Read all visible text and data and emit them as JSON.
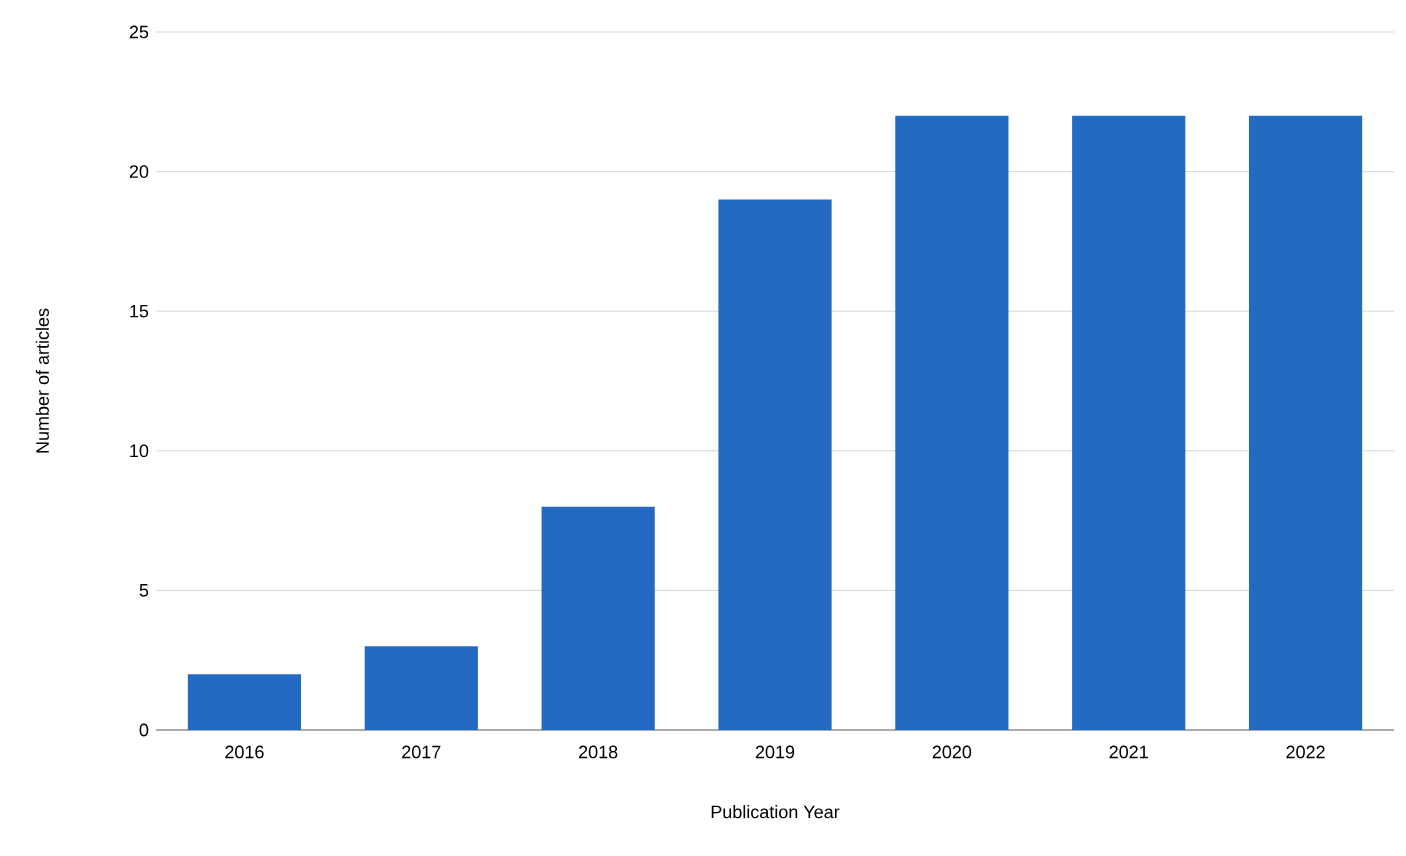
{
  "chart_data": {
    "type": "bar",
    "xlabel": "Publication Year",
    "ylabel": "Number of articles",
    "categories": [
      "2016",
      "2017",
      "2018",
      "2019",
      "2020",
      "2021",
      "2022"
    ],
    "values": [
      2,
      3,
      8,
      19,
      22,
      22,
      22
    ],
    "color": "#2469c2",
    "ylim": [
      0,
      25
    ],
    "yticks": [
      0,
      5,
      10,
      15,
      20,
      25
    ],
    "grid": "y"
  }
}
